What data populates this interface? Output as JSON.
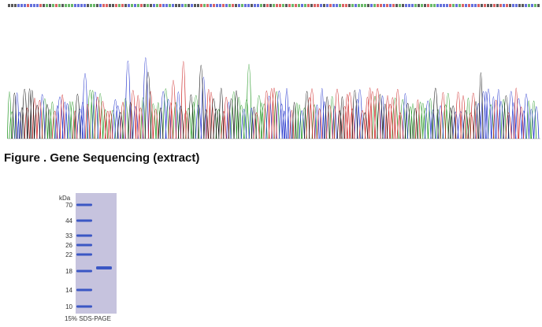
{
  "figure": {
    "caption": "Figure . Gene Sequencing (extract)"
  },
  "gel": {
    "unit": "kDa",
    "markers": [
      "70",
      "44",
      "33",
      "26",
      "22",
      "18",
      "14",
      "10"
    ],
    "caption": "15% SDS-PAGE"
  }
}
